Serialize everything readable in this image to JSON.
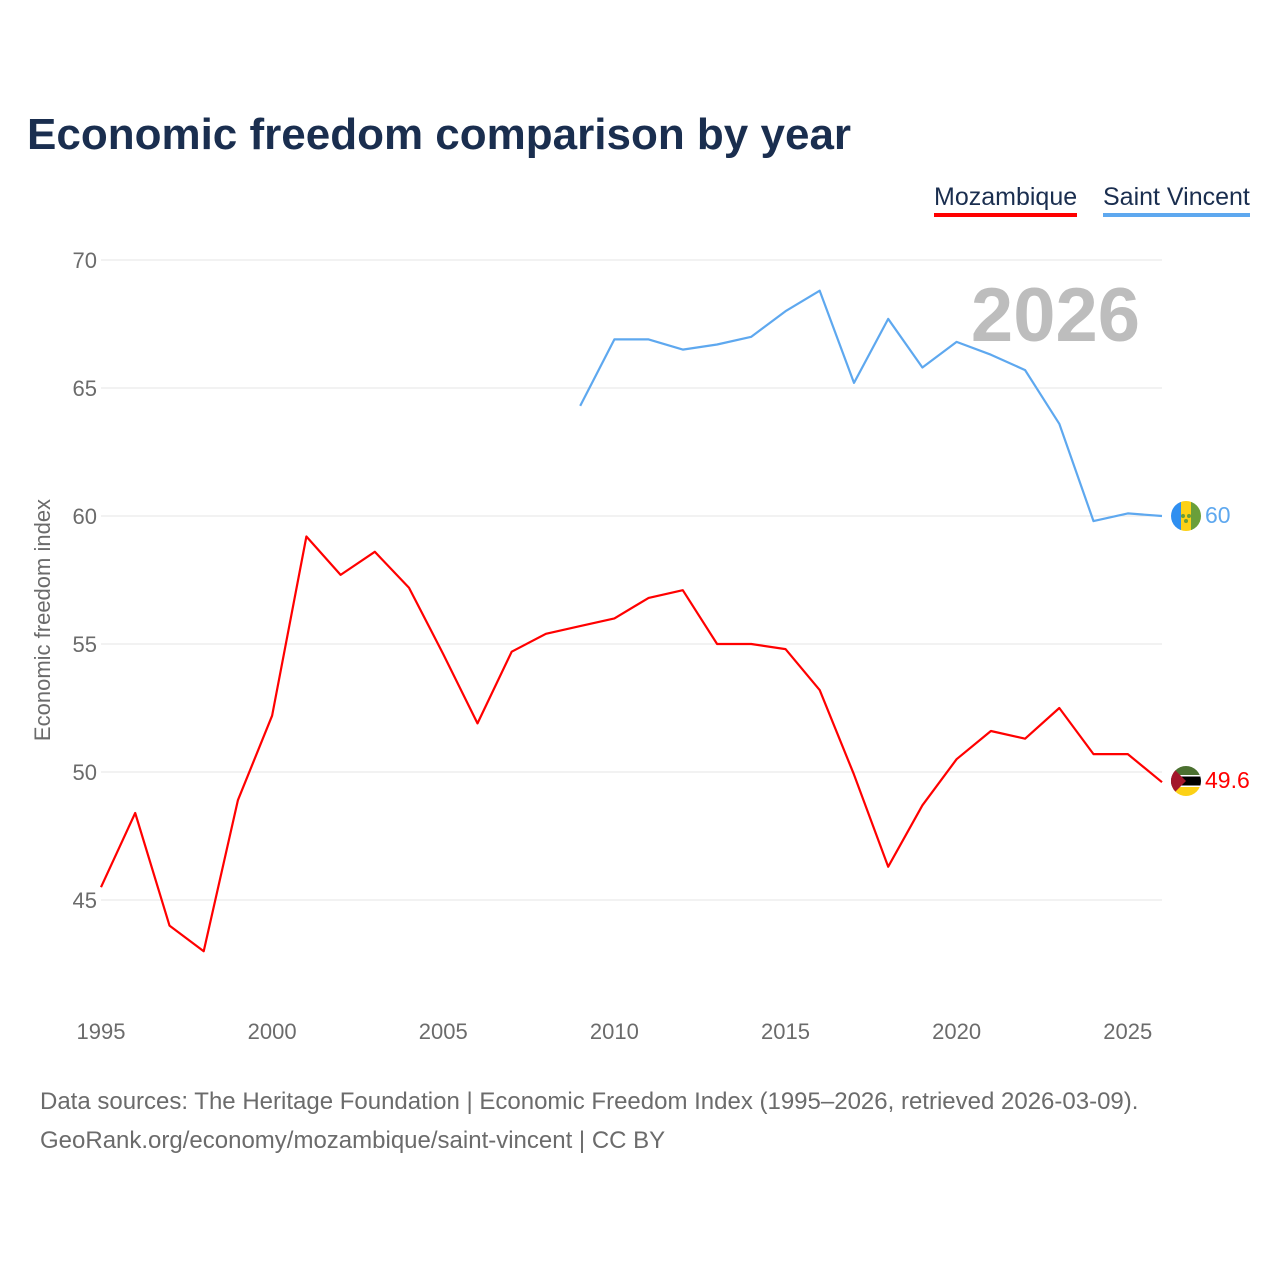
{
  "chart_data": {
    "type": "line",
    "title": "Economic freedom comparison by year",
    "xlabel": "",
    "ylabel": "Economic freedom index",
    "xlim": [
      1995,
      2026
    ],
    "ylim": [
      41,
      70
    ],
    "x_ticks": [
      "1995",
      "2000",
      "2005",
      "2010",
      "2015",
      "2020",
      "2025"
    ],
    "y_ticks": [
      "45",
      "50",
      "55",
      "60",
      "65",
      "70"
    ],
    "grid": true,
    "year_watermark": "2026",
    "legend_position": "top-right",
    "series": [
      {
        "name": "Mozambique",
        "color": "#ff0000",
        "end_label": "49.6",
        "x": [
          1995,
          1996,
          1997,
          1998,
          1999,
          2000,
          2001,
          2002,
          2003,
          2004,
          2005,
          2006,
          2007,
          2008,
          2009,
          2010,
          2011,
          2012,
          2013,
          2014,
          2015,
          2016,
          2017,
          2018,
          2019,
          2020,
          2021,
          2022,
          2023,
          2024,
          2025,
          2026
        ],
        "values": [
          45.5,
          48.4,
          44.0,
          43.0,
          48.9,
          52.2,
          59.2,
          57.7,
          58.6,
          57.2,
          54.6,
          51.9,
          54.7,
          55.4,
          55.7,
          56.0,
          56.8,
          57.1,
          55.0,
          55.0,
          54.8,
          53.2,
          49.9,
          46.3,
          48.7,
          50.5,
          51.6,
          51.3,
          52.5,
          50.7,
          50.7,
          49.6
        ]
      },
      {
        "name": "Saint Vincent",
        "color": "#5ea8ef",
        "end_label": "60",
        "x": [
          2009,
          2010,
          2011,
          2012,
          2013,
          2014,
          2015,
          2016,
          2017,
          2018,
          2019,
          2020,
          2021,
          2022,
          2023,
          2024,
          2025,
          2026
        ],
        "values": [
          64.3,
          66.9,
          66.9,
          66.5,
          66.7,
          67.0,
          68.0,
          68.8,
          65.2,
          67.7,
          65.8,
          66.8,
          66.3,
          65.7,
          63.6,
          59.8,
          60.1,
          60.0
        ]
      }
    ]
  },
  "footer": {
    "line1": "Data sources: The Heritage Foundation | Economic Freedom Index (1995–2026, retrieved 2026-03-09).",
    "line2": "GeoRank.org/economy/mozambique/saint-vincent | CC BY"
  }
}
